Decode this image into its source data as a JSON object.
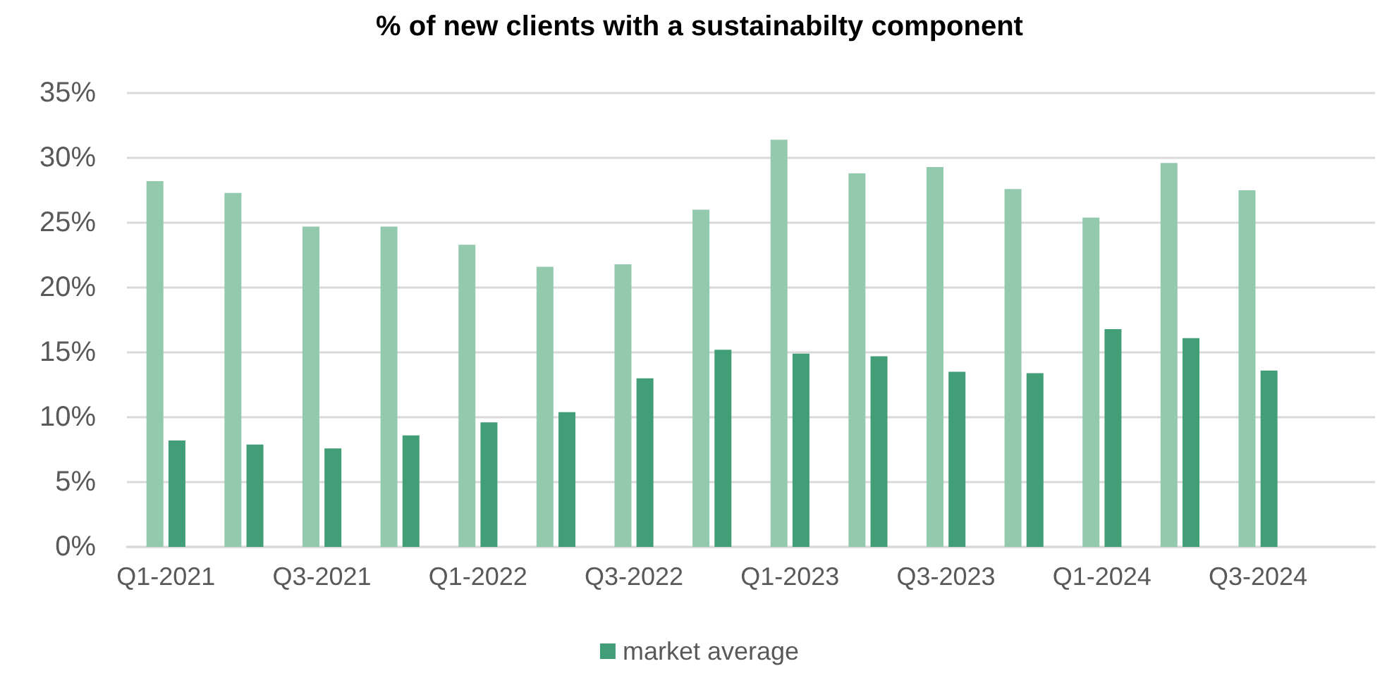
{
  "chart_data": {
    "type": "bar",
    "title": "% of new clients with a sustainabilty component",
    "categories": [
      "Q1-2021",
      null,
      "Q3-2021",
      null,
      "Q1-2022",
      null,
      "Q3-2022",
      null,
      "Q1-2023",
      null,
      "Q3-2023",
      null,
      "Q1-2024",
      null,
      "Q3-2024",
      null
    ],
    "series": [
      {
        "color": "#93c9ad",
        "values": [
          28.2,
          27.3,
          24.7,
          24.7,
          23.3,
          21.6,
          21.8,
          26.0,
          31.4,
          28.8,
          29.3,
          27.6,
          25.4,
          29.6,
          27.5,
          null
        ]
      },
      {
        "name": "market average",
        "color": "#429e76",
        "values": [
          8.2,
          7.9,
          7.6,
          8.6,
          9.6,
          10.4,
          13.0,
          15.2,
          14.9,
          14.7,
          13.5,
          13.4,
          16.8,
          16.1,
          13.6,
          null
        ]
      }
    ],
    "ylim": [
      0,
      35
    ],
    "yticks": [
      {
        "value": 0,
        "label": "0%"
      },
      {
        "value": 5,
        "label": "5%"
      },
      {
        "value": 10,
        "label": "10%"
      },
      {
        "value": 15,
        "label": "15%"
      },
      {
        "value": 20,
        "label": "20%"
      },
      {
        "value": 25,
        "label": "25%"
      },
      {
        "value": 30,
        "label": "30%"
      },
      {
        "value": 35,
        "label": "35%"
      }
    ],
    "grid": "y",
    "legend": "bottom"
  }
}
